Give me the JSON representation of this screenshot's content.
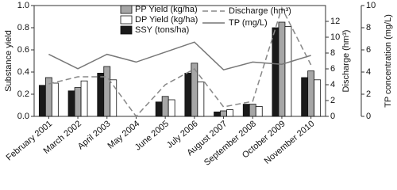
{
  "chart_data": {
    "type": "bar",
    "categories": [
      "February 2001",
      "March 2002",
      "April 2003",
      "May 2004",
      "June 2005",
      "July 2006",
      "August 2007",
      "September 2008",
      "October 2009",
      "November 2010"
    ],
    "series": [
      {
        "name": "SSY (tons/ha)",
        "color": "#1a1a1a",
        "values": [
          0.28,
          0.23,
          0.39,
          0,
          0.13,
          0.39,
          0.04,
          0.11,
          0.8,
          0.35
        ]
      },
      {
        "name": "PP Yield (kg/ha)",
        "color": "#a6a6a6",
        "values": [
          0.35,
          0.26,
          0.45,
          0,
          0.18,
          0.48,
          0.05,
          0.11,
          0.85,
          0.41
        ]
      },
      {
        "name": "DP Yield (kg/ha)",
        "color": "#ffffff",
        "values": [
          0.3,
          0.32,
          0.33,
          0,
          0.15,
          0.31,
          0.06,
          0.09,
          0.81,
          0.33
        ]
      },
      {
        "name": "Discharge (hm³)",
        "color": "#888888",
        "type": "line",
        "dashed": true,
        "axis": "y2",
        "values": [
          4.1,
          5.0,
          5.0,
          0,
          4.0,
          6.0,
          1.2,
          1.9,
          13.7,
          6.5
        ]
      },
      {
        "name": "TP (mg/L)",
        "color": "#777777",
        "type": "line",
        "axis": "y3",
        "values": [
          5.6,
          4.3,
          5.6,
          4.9,
          5.8,
          6.7,
          4.2,
          4.9,
          4.7,
          5.5
        ]
      }
    ],
    "ylabel": "Substance yield",
    "y2label": "Discharge (hm³)",
    "y3label": "TP concentration (mg/L)",
    "ylim": [
      0,
      1
    ],
    "yticks": [
      {
        "value": 0,
        "label": "0.0"
      },
      0.2,
      0.4,
      0.6,
      0.8,
      {
        "value": 1,
        "label": "1.0"
      }
    ],
    "y2lim": [
      0,
      14
    ],
    "y2ticks": [
      0,
      2,
      4,
      6,
      8,
      10,
      12
    ],
    "y3lim": [
      0,
      10
    ],
    "y3ticks": [
      0,
      2,
      4,
      6,
      8,
      10
    ]
  }
}
